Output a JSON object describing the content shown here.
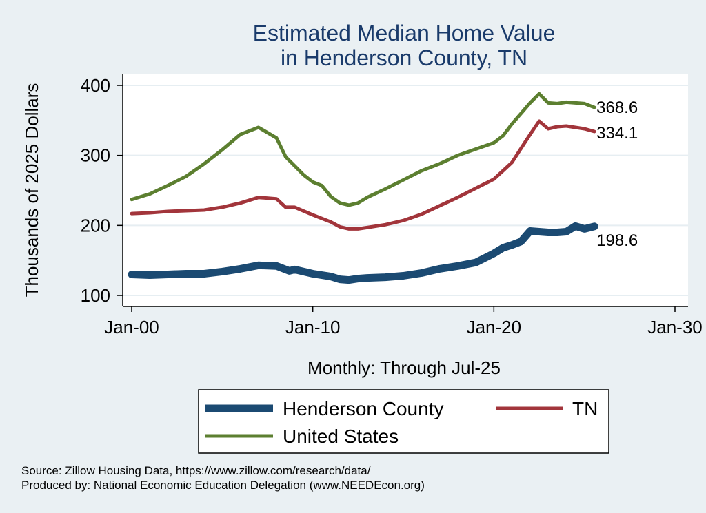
{
  "chart_data": {
    "type": "line",
    "title": [
      "Estimated Median Home Value",
      "in Henderson County, TN"
    ],
    "xlabel": "Monthly: Through Jul-25",
    "ylabel": "Thousands of 2025 Dollars",
    "x_ticks": [
      "Jan-00",
      "Jan-10",
      "Jan-20",
      "Jan-30"
    ],
    "x_tick_years": [
      2000,
      2010,
      2020,
      2030
    ],
    "xlim": [
      2000,
      2030
    ],
    "y_ticks": [
      100,
      200,
      300,
      400
    ],
    "ylim": [
      88,
      410
    ],
    "grid": true,
    "legend_position": "bottom",
    "series": [
      {
        "name": "Henderson County",
        "color": "#1b4a72",
        "end_label": "198.6",
        "points": [
          [
            2000.0,
            130
          ],
          [
            2001.0,
            129
          ],
          [
            2002.0,
            130
          ],
          [
            2003.0,
            131
          ],
          [
            2004.0,
            131
          ],
          [
            2005.0,
            134
          ],
          [
            2006.0,
            138
          ],
          [
            2007.0,
            143
          ],
          [
            2008.0,
            142
          ],
          [
            2008.7,
            135
          ],
          [
            2009.0,
            137
          ],
          [
            2010.0,
            131
          ],
          [
            2011.0,
            127
          ],
          [
            2011.5,
            123
          ],
          [
            2012.0,
            122
          ],
          [
            2012.5,
            124
          ],
          [
            2013.0,
            125
          ],
          [
            2014.0,
            126
          ],
          [
            2015.0,
            128
          ],
          [
            2016.0,
            132
          ],
          [
            2017.0,
            138
          ],
          [
            2018.0,
            142
          ],
          [
            2019.0,
            147
          ],
          [
            2020.0,
            160
          ],
          [
            2020.5,
            168
          ],
          [
            2021.0,
            172
          ],
          [
            2021.5,
            177
          ],
          [
            2022.0,
            192
          ],
          [
            2022.5,
            191
          ],
          [
            2023.0,
            190
          ],
          [
            2023.5,
            190
          ],
          [
            2024.0,
            191
          ],
          [
            2024.5,
            199
          ],
          [
            2025.0,
            195
          ],
          [
            2025.55,
            198.6
          ]
        ]
      },
      {
        "name": "TN",
        "color": "#a2353b",
        "end_label": "334.1",
        "points": [
          [
            2000.0,
            217
          ],
          [
            2001.0,
            218
          ],
          [
            2002.0,
            220
          ],
          [
            2003.0,
            221
          ],
          [
            2004.0,
            222
          ],
          [
            2005.0,
            226
          ],
          [
            2006.0,
            232
          ],
          [
            2007.0,
            240
          ],
          [
            2008.0,
            238
          ],
          [
            2008.5,
            226
          ],
          [
            2009.0,
            226
          ],
          [
            2010.0,
            215
          ],
          [
            2011.0,
            205
          ],
          [
            2011.5,
            198
          ],
          [
            2012.0,
            195
          ],
          [
            2012.5,
            195
          ],
          [
            2013.0,
            197
          ],
          [
            2014.0,
            201
          ],
          [
            2015.0,
            207
          ],
          [
            2016.0,
            216
          ],
          [
            2017.0,
            228
          ],
          [
            2018.0,
            240
          ],
          [
            2019.0,
            253
          ],
          [
            2020.0,
            266
          ],
          [
            2020.5,
            278
          ],
          [
            2021.0,
            290
          ],
          [
            2021.5,
            310
          ],
          [
            2022.0,
            330
          ],
          [
            2022.5,
            349
          ],
          [
            2023.0,
            338
          ],
          [
            2023.5,
            341
          ],
          [
            2024.0,
            342
          ],
          [
            2024.5,
            340
          ],
          [
            2025.0,
            338
          ],
          [
            2025.55,
            334.1
          ]
        ]
      },
      {
        "name": "United States",
        "color": "#5c7f30",
        "end_label": "368.6",
        "points": [
          [
            2000.0,
            237
          ],
          [
            2001.0,
            245
          ],
          [
            2002.0,
            257
          ],
          [
            2003.0,
            270
          ],
          [
            2004.0,
            288
          ],
          [
            2005.0,
            308
          ],
          [
            2006.0,
            330
          ],
          [
            2007.0,
            340
          ],
          [
            2008.0,
            325
          ],
          [
            2008.5,
            298
          ],
          [
            2009.0,
            285
          ],
          [
            2009.5,
            272
          ],
          [
            2010.0,
            262
          ],
          [
            2010.5,
            257
          ],
          [
            2011.0,
            241
          ],
          [
            2011.5,
            232
          ],
          [
            2012.0,
            229
          ],
          [
            2012.5,
            232
          ],
          [
            2013.0,
            240
          ],
          [
            2014.0,
            252
          ],
          [
            2015.0,
            265
          ],
          [
            2016.0,
            278
          ],
          [
            2017.0,
            288
          ],
          [
            2018.0,
            300
          ],
          [
            2019.0,
            309
          ],
          [
            2020.0,
            318
          ],
          [
            2020.5,
            328
          ],
          [
            2021.0,
            345
          ],
          [
            2021.5,
            360
          ],
          [
            2022.0,
            375
          ],
          [
            2022.5,
            388
          ],
          [
            2023.0,
            375
          ],
          [
            2023.5,
            374
          ],
          [
            2024.0,
            376
          ],
          [
            2024.5,
            375
          ],
          [
            2025.0,
            374
          ],
          [
            2025.55,
            368.6
          ]
        ]
      }
    ]
  },
  "source_lines": [
    "Source: Zillow Housing Data, https://www.zillow.com/research/data/",
    "Produced by: National Economic Education Delegation (www.NEEDEcon.org)"
  ]
}
